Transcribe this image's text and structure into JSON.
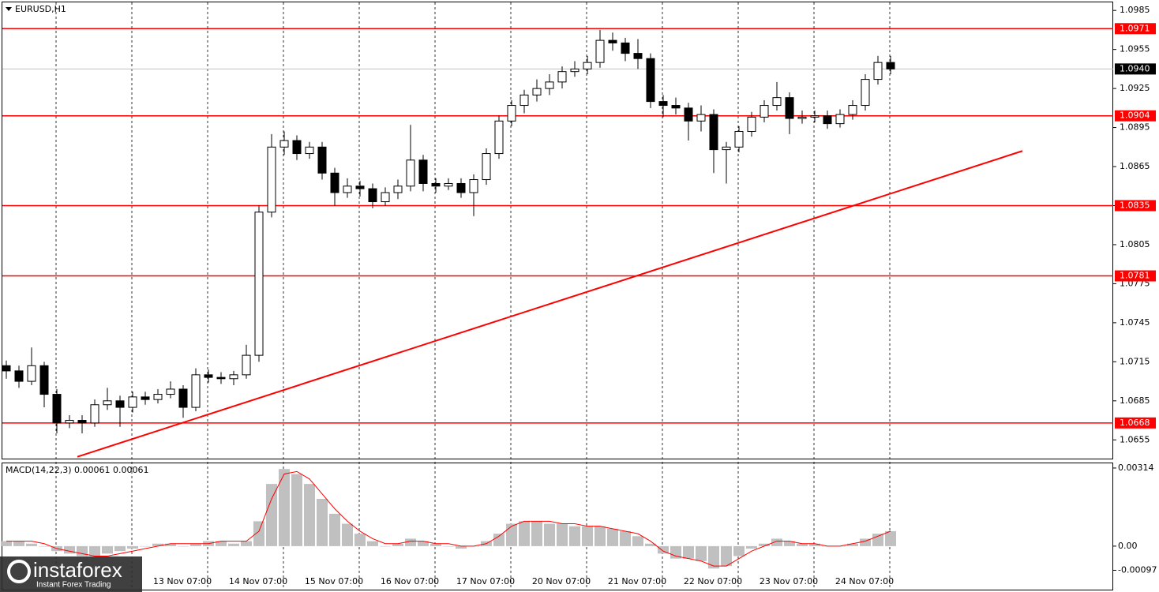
{
  "chart_data": {
    "type": "candlestick",
    "title": "EURUSD,H1",
    "candles": {
      "open": [
        1.0712,
        1.0708,
        1.07,
        1.0712,
        1.069,
        1.0668,
        1.067,
        1.0668,
        1.0682,
        1.0685,
        1.068,
        1.0688,
        1.0686,
        1.069,
        1.0694,
        1.068,
        1.0705,
        1.0703,
        1.0702,
        1.0705,
        1.072,
        1.083,
        1.088,
        1.0885,
        1.0875,
        1.088,
        1.086,
        1.0845,
        1.085,
        1.0848,
        1.0838,
        1.0845,
        1.085,
        1.087,
        1.0852,
        1.085,
        1.0852,
        1.0845,
        1.0855,
        1.0875,
        1.09,
        1.0912,
        1.092,
        1.0925,
        1.093,
        1.0938,
        1.094,
        1.0945,
        1.0962,
        1.096,
        1.0952,
        1.0948,
        1.0915,
        1.0912,
        1.091,
        1.09,
        1.0905,
        1.0878,
        1.088,
        1.0892,
        1.0903,
        1.0912,
        1.0918,
        1.0902,
        1.0903,
        1.0904,
        1.0898,
        1.0905,
        1.0912,
        1.0932,
        1.0945
      ],
      "high": [
        1.0716,
        1.0712,
        1.0726,
        1.0715,
        1.0694,
        1.0674,
        1.0674,
        1.0686,
        1.0695,
        1.0689,
        1.0692,
        1.0692,
        1.0694,
        1.07,
        1.0697,
        1.071,
        1.0709,
        1.0707,
        1.0708,
        1.0728,
        1.0835,
        1.089,
        1.0892,
        1.0889,
        1.0884,
        1.0884,
        1.0864,
        1.0856,
        1.0854,
        1.0852,
        1.0849,
        1.0855,
        1.0897,
        1.0874,
        1.0856,
        1.0856,
        1.0856,
        1.0859,
        1.0879,
        1.0904,
        1.0916,
        1.0924,
        1.0932,
        1.0936,
        1.0942,
        1.0946,
        1.095,
        1.097,
        1.0968,
        1.0964,
        1.0963,
        1.0952,
        1.092,
        1.0918,
        1.0914,
        1.0912,
        1.0909,
        1.0884,
        1.0896,
        1.0907,
        1.0916,
        1.093,
        1.0922,
        1.0908,
        1.0908,
        1.0908,
        1.0909,
        1.0916,
        1.0936,
        1.095,
        1.095
      ],
      "low": [
        1.0702,
        1.0695,
        1.0697,
        1.068,
        1.066,
        1.0664,
        1.066,
        1.0665,
        1.0678,
        1.0665,
        1.0676,
        1.0682,
        1.0683,
        1.0687,
        1.0672,
        1.0677,
        1.0699,
        1.0698,
        1.0697,
        1.0702,
        1.0715,
        1.0826,
        1.0874,
        1.087,
        1.0871,
        1.0855,
        1.0835,
        1.0841,
        1.0842,
        1.0833,
        1.0835,
        1.084,
        1.0846,
        1.0846,
        1.0845,
        1.0847,
        1.0841,
        1.0827,
        1.0851,
        1.0871,
        1.0896,
        1.0906,
        1.0915,
        1.092,
        1.0925,
        1.0934,
        1.0936,
        1.0941,
        1.0954,
        1.0946,
        1.094,
        1.091,
        1.0903,
        1.0905,
        1.0885,
        1.0892,
        1.086,
        1.0852,
        1.0876,
        1.0888,
        1.0899,
        1.0908,
        1.089,
        1.0898,
        1.0899,
        1.0894,
        1.0895,
        1.0901,
        1.0908,
        1.0928,
        1.0936
      ],
      "close": [
        1.0708,
        1.07,
        1.0712,
        1.069,
        1.0668,
        1.067,
        1.0668,
        1.0682,
        1.0685,
        1.068,
        1.0688,
        1.0686,
        1.069,
        1.0694,
        1.068,
        1.0705,
        1.0703,
        1.0702,
        1.0705,
        1.072,
        1.083,
        1.088,
        1.0885,
        1.0875,
        1.088,
        1.086,
        1.0845,
        1.085,
        1.0848,
        1.0838,
        1.0845,
        1.085,
        1.087,
        1.0852,
        1.085,
        1.0852,
        1.0845,
        1.0855,
        1.0875,
        1.09,
        1.0912,
        1.092,
        1.0925,
        1.093,
        1.0938,
        1.094,
        1.0945,
        1.0962,
        1.096,
        1.0952,
        1.0948,
        1.0915,
        1.0912,
        1.091,
        1.09,
        1.0905,
        1.0878,
        1.088,
        1.0892,
        1.0903,
        1.0912,
        1.0918,
        1.0902,
        1.0903,
        1.0904,
        1.0898,
        1.0905,
        1.0912,
        1.0932,
        1.0945,
        1.094
      ]
    },
    "ylim": [
      1.064,
      1.0993
    ],
    "yticks": [
      1.0985,
      1.0955,
      1.0925,
      1.0895,
      1.0865,
      1.0835,
      1.0805,
      1.0775,
      1.0745,
      1.0715,
      1.0685,
      1.0655
    ],
    "levels": [
      1.0971,
      1.0904,
      1.0835,
      1.0781,
      1.0668
    ],
    "level_color": "#ff0000",
    "current_price": {
      "value": 1.094,
      "label": "1.0940"
    },
    "trendline": {
      "x": [
        23.75,
        323
      ],
      "y": [
        1.0642,
        1.0877
      ]
    },
    "xlim": [
      0,
      352
    ],
    "xticks": [
      {
        "value": 65,
        "label": "13 Nov 07:00"
      },
      {
        "value": 89,
        "label": "14 Nov 07:00"
      },
      {
        "value": 113,
        "label": "15 Nov 07:00"
      },
      {
        "value": 137,
        "label": "16 Nov 07:00"
      },
      {
        "value": 161,
        "label": "17 Nov 07:00"
      },
      {
        "value": 185,
        "label": "20 Nov 07:00"
      },
      {
        "value": 209,
        "label": "21 Nov 07:00"
      },
      {
        "value": 233,
        "label": "22 Nov 07:00"
      },
      {
        "value": 257,
        "label": "23 Nov 07:00"
      },
      {
        "value": 281,
        "label": "24 Nov 07:00"
      }
    ],
    "macd": {
      "title": "MACD(14,22,3) 0.00061 0.00061",
      "histogram": [
        0.0002,
        0.0002,
        0.0001,
        0,
        -0.0002,
        -0.0003,
        -0.0004,
        -0.0004,
        -0.0003,
        -0.0002,
        -0.0001,
        0,
        0.0001,
        0.0001,
        0,
        0.0001,
        0.0002,
        0.0002,
        0.0001,
        0.0002,
        0.001,
        0.0025,
        0.0031,
        0.0029,
        0.0025,
        0.0019,
        0.0013,
        0.0009,
        0.0005,
        0.0002,
        0,
        0.0001,
        0.0003,
        0.0002,
        0.0001,
        0,
        -0.0001,
        0,
        0.0002,
        0.0005,
        0.0009,
        0.001,
        0.001,
        0.0009,
        0.0009,
        0.0008,
        0.0008,
        0.0008,
        0.0007,
        0.0006,
        0.0004,
        0.0001,
        -0.0003,
        -0.0005,
        -0.0005,
        -0.0006,
        -0.0009,
        -0.0008,
        -0.0004,
        -0.0001,
        0.0001,
        0.0003,
        0.0002,
        0.0001,
        0.0001,
        0,
        0,
        0.0001,
        0.0003,
        0.0005,
        0.0006
      ],
      "signal": [
        0.0002,
        0.0002,
        0.0002,
        0.0001,
        -0.0001,
        -0.0002,
        -0.0003,
        -0.0004,
        -0.0004,
        -0.0003,
        -0.0002,
        -0.0001,
        0,
        0.0001,
        0.0001,
        0.0001,
        0.0001,
        0.0002,
        0.0002,
        0.0002,
        0.0006,
        0.0019,
        0.0029,
        0.003,
        0.0027,
        0.0021,
        0.0015,
        0.001,
        0.0006,
        0.0003,
        0.0001,
        0.0001,
        0.0002,
        0.0002,
        0.0001,
        0.0001,
        0,
        0,
        0.0001,
        0.0004,
        0.0008,
        0.001,
        0.001,
        0.001,
        0.0009,
        0.0009,
        0.0008,
        0.0008,
        0.0007,
        0.0006,
        0.0005,
        0.0002,
        -0.0002,
        -0.0004,
        -0.0005,
        -0.0006,
        -0.0008,
        -0.0008,
        -0.0005,
        -0.0002,
        0,
        0.0002,
        0.0002,
        0.0001,
        0.0001,
        0,
        0,
        0.0001,
        0.0002,
        0.0004,
        0.0006
      ],
      "histogram_color": "#c0c0c0",
      "signal_color": "#ff0000",
      "ylim": [
        -0.00178,
        0.00336
      ],
      "yticks": [
        0.00314,
        {
          "value": 0,
          "label": "0.00"
        },
        -0.00097
      ]
    },
    "watermark": {
      "brand": "instaforex",
      "tagline": "Instant Forex Trading"
    }
  }
}
